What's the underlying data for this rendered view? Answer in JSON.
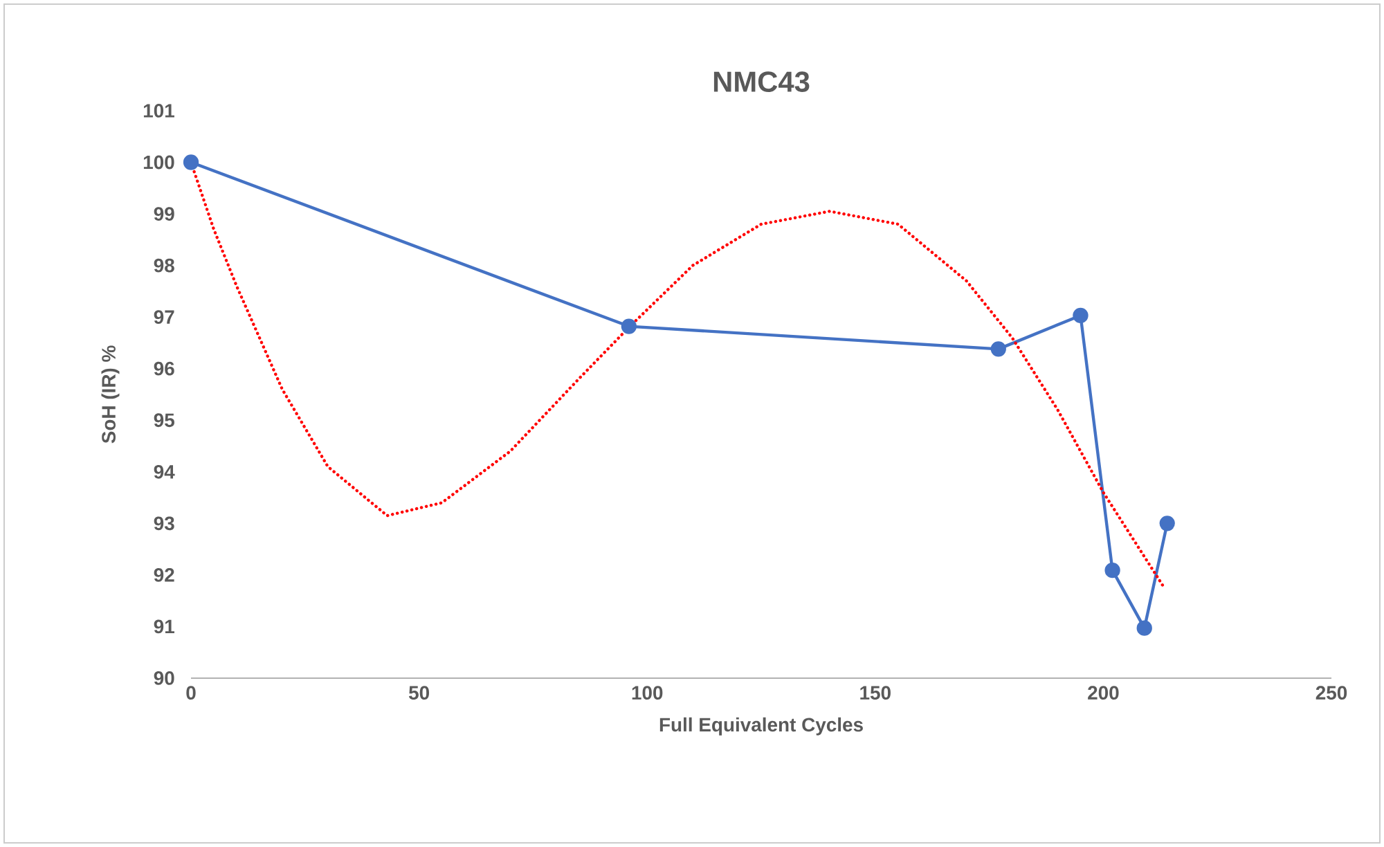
{
  "chart_data": {
    "type": "line",
    "title": "NMC43",
    "xlabel": "Full Equivalent Cycles",
    "ylabel": "SoH (IR) %",
    "xlim": [
      0,
      250
    ],
    "ylim": [
      90,
      101
    ],
    "xticks": [
      0,
      50,
      100,
      150,
      200,
      250
    ],
    "yticks": [
      90,
      91,
      92,
      93,
      94,
      95,
      96,
      97,
      98,
      99,
      100,
      101
    ],
    "grid": false,
    "series": [
      {
        "color": "#4472c4",
        "marker": "circle",
        "line_style": "solid",
        "x": [
          0,
          96,
          177,
          195,
          202,
          209,
          214
        ],
        "values": [
          100,
          96.82,
          96.38,
          97.03,
          92.09,
          90.97,
          93.0
        ]
      },
      {
        "color": "#ff0000",
        "marker": "none",
        "line_style": "dotted",
        "x": [
          0,
          5,
          10,
          20,
          30,
          43,
          55,
          70,
          85,
          96,
          110,
          125,
          140,
          155,
          170,
          180,
          190,
          200,
          213
        ],
        "values": [
          100,
          98.7,
          97.6,
          95.6,
          94.1,
          93.15,
          93.4,
          94.4,
          95.8,
          96.8,
          98.0,
          98.8,
          99.05,
          98.8,
          97.7,
          96.6,
          95.2,
          93.6,
          91.8
        ]
      }
    ]
  }
}
